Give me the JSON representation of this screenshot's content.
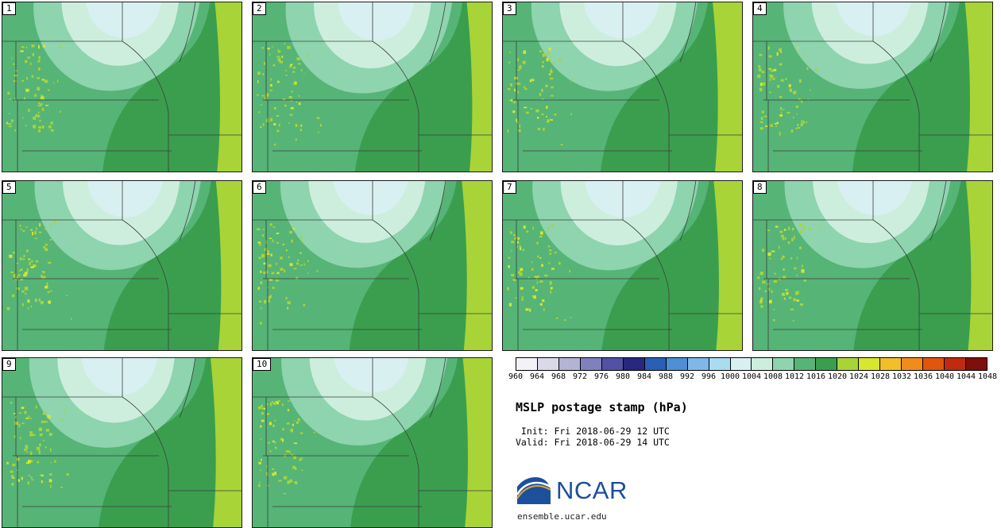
{
  "legend": {
    "title": "MSLP postage stamp (hPa)",
    "init_line": " Init: Fri 2018-06-29 12 UTC",
    "valid_line": "Valid: Fri 2018-06-29 14 UTC",
    "logo_text": "NCAR",
    "website": "ensemble.ucar.edu"
  },
  "chart_data": {
    "type": "heatmap",
    "subtype": "ensemble postage-stamp filled-contour pressure maps",
    "title": "MSLP postage stamp (hPa)",
    "variable": "MSLP",
    "units": "hPa",
    "init_time": "Fri 2018-06-29 12 UTC",
    "valid_time": "Fri 2018-06-29 14 UTC",
    "members": [
      "1",
      "2",
      "3",
      "4",
      "5",
      "6",
      "7",
      "8",
      "9",
      "10"
    ],
    "grid_layout": {
      "rows": 3,
      "cols": 4
    },
    "colorbar": {
      "orientation": "horizontal",
      "levels": [
        960,
        964,
        968,
        972,
        976,
        980,
        984,
        988,
        992,
        996,
        1000,
        1004,
        1008,
        1012,
        1016,
        1020,
        1024,
        1028,
        1032,
        1036,
        1040,
        1044,
        1048
      ],
      "colors": [
        "#f2f2f7",
        "#d9d9e8",
        "#b3b3d4",
        "#8080bc",
        "#5252a3",
        "#28287d",
        "#2b5fb3",
        "#4f8fd4",
        "#7fb8e6",
        "#aadcf0",
        "#d9f0f2",
        "#cdeedd",
        "#8ed4ae",
        "#56b477",
        "#3a9e4e",
        "#a8d437",
        "#d7e62e",
        "#f0c02a",
        "#ef8c1c",
        "#e0550f",
        "#bf2a10",
        "#7d100a"
      ]
    },
    "displayed_value_range": [
      1000,
      1024
    ],
    "map_region": "central US plains with state boundaries",
    "branding_color": "#1c4f9c"
  }
}
